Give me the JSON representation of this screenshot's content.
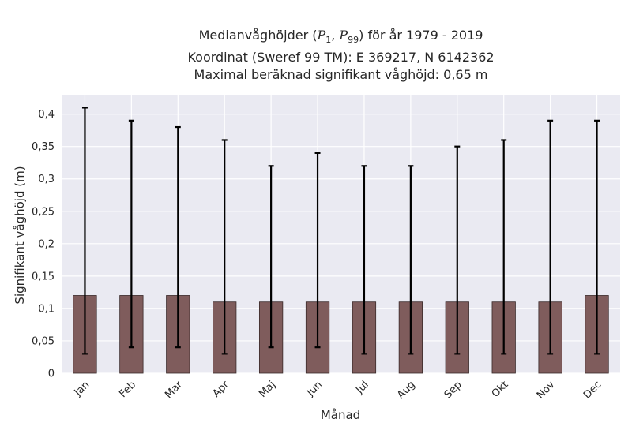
{
  "chart_data": {
    "type": "bar",
    "title": {
      "line1_prefix": "Medianvåghöjder (",
      "p_a": "P",
      "p_a_sub": "1",
      "p_sep": ", ",
      "p_b": "P",
      "p_b_sub": "99",
      "line1_suffix": ") för år 1979 - 2019",
      "line2": "Koordinat (Sweref 99 TM): E 369217, N 6142362",
      "line3": "Maximal beräknad signifikant våghöjd: 0,65 m"
    },
    "xlabel": "Månad",
    "ylabel": "Signifikant våghöjd (m)",
    "ylim": [
      0,
      0.43
    ],
    "yticks": [
      0,
      0.05,
      0.1,
      0.15,
      0.2,
      0.25,
      0.3,
      0.35,
      0.4
    ],
    "ytick_labels": [
      "0",
      "0,05",
      "0,1",
      "0,15",
      "0,2",
      "0,25",
      "0,3",
      "0,35",
      "0,4"
    ],
    "categories": [
      "Jan",
      "Feb",
      "Mar",
      "Apr",
      "Maj",
      "Jun",
      "Jul",
      "Aug",
      "Sep",
      "Okt",
      "Nov",
      "Dec"
    ],
    "values": [
      0.12,
      0.12,
      0.12,
      0.11,
      0.11,
      0.11,
      0.11,
      0.11,
      0.11,
      0.11,
      0.11,
      0.12
    ],
    "err_low": [
      0.03,
      0.04,
      0.04,
      0.03,
      0.04,
      0.04,
      0.03,
      0.03,
      0.03,
      0.03,
      0.03,
      0.03
    ],
    "err_high": [
      0.41,
      0.39,
      0.38,
      0.36,
      0.32,
      0.34,
      0.32,
      0.32,
      0.35,
      0.36,
      0.39,
      0.39
    ],
    "grid": true,
    "colors": {
      "bar": "#7f5c5c",
      "bar_edge": "#3a2a2a",
      "error": "#000000",
      "background": "#eaeaf2",
      "grid": "#ffffff"
    }
  }
}
